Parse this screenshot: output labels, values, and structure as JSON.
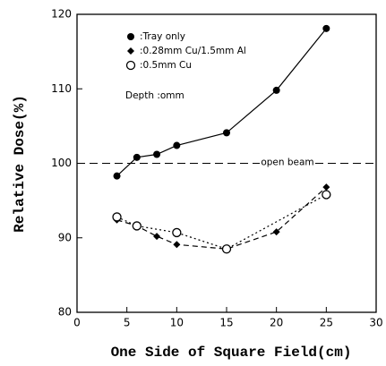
{
  "chart_data": {
    "type": "line",
    "xlabel": "One Side of Square Field(cm)",
    "ylabel": "Relative Dose(%)",
    "xlim": [
      0,
      30
    ],
    "xticks": [
      0,
      5,
      10,
      15,
      20,
      25,
      30
    ],
    "ylim": [
      80,
      120
    ],
    "yticks": [
      80,
      90,
      100,
      110,
      120
    ],
    "series": [
      {
        "name": ":Tray only",
        "color": "#000000",
        "marker": "circle-filled",
        "line": "solid",
        "x": [
          4,
          6,
          8,
          10,
          15,
          20,
          25
        ],
        "values": [
          98.3,
          100.8,
          101.2,
          102.4,
          104.1,
          109.8,
          118.1
        ]
      },
      {
        "name": ":0.28mm Cu/1.5mm Al",
        "color": "#000000",
        "marker": "diamond",
        "line": "dashed",
        "x": [
          4,
          6,
          8,
          10,
          15,
          20,
          25
        ],
        "values": [
          92.4,
          91.6,
          90.2,
          89.1,
          88.5,
          90.8,
          96.8
        ]
      },
      {
        "name": ":0.5mm Cu",
        "color": "#000000",
        "marker": "circle-open",
        "line": "dotted",
        "x": [
          4,
          6,
          10,
          15,
          25
        ],
        "values": [
          92.8,
          91.6,
          90.7,
          88.5,
          95.8
        ]
      }
    ],
    "annotations": [
      "Depth :omm"
    ],
    "reference_lines": [
      {
        "value": 100,
        "label": "open beam"
      }
    ]
  }
}
